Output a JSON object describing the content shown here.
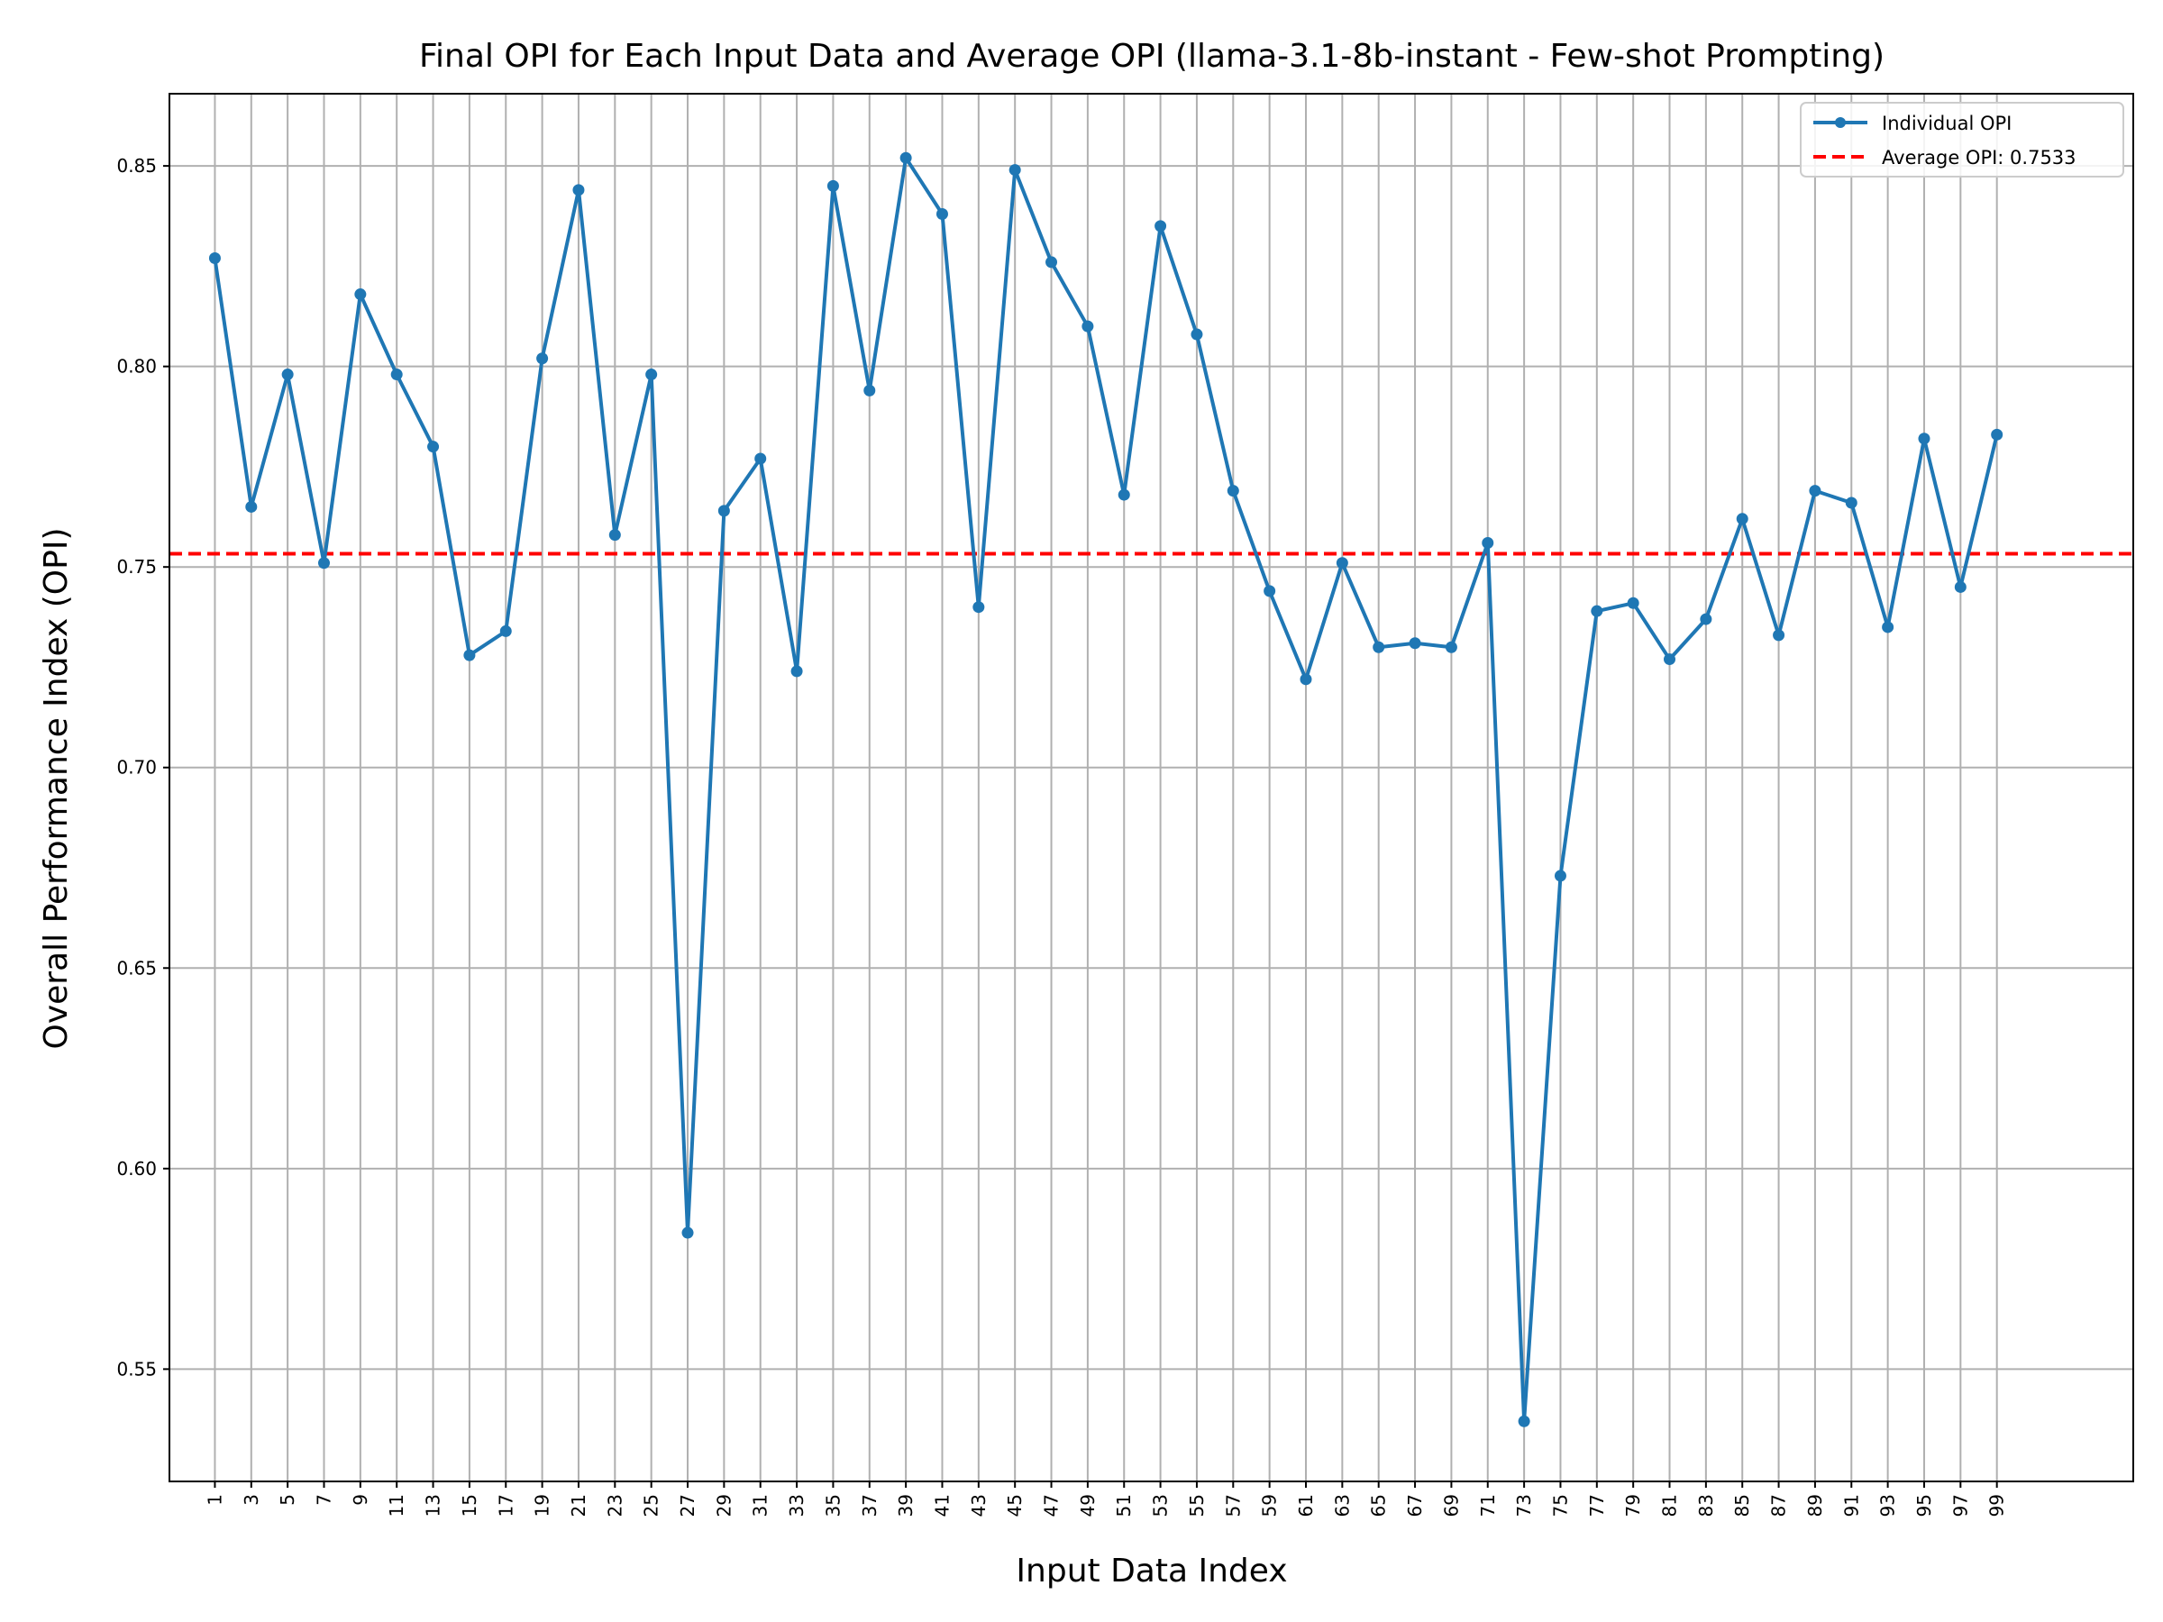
{
  "chart_data": {
    "type": "line",
    "title": "Final OPI for Each Input Data and Average OPI (llama-3.1-8b-instant - Few-shot Prompting)",
    "xlabel": "Input Data Index",
    "ylabel": "Overall Performance Index (OPI)",
    "ylim": [
      0.522,
      0.868
    ],
    "xlim": [
      -1.5,
      106.5
    ],
    "y_ticks": [
      0.55,
      0.6,
      0.65,
      0.7,
      0.75,
      0.8,
      0.85
    ],
    "y_tick_labels": [
      "0.55",
      "0.60",
      "0.65",
      "0.70",
      "0.75",
      "0.80",
      "0.85"
    ],
    "x_ticks": [
      1,
      3,
      5,
      7,
      9,
      11,
      13,
      15,
      17,
      19,
      21,
      23,
      25,
      27,
      29,
      31,
      33,
      35,
      37,
      39,
      41,
      43,
      45,
      47,
      49,
      51,
      53,
      55,
      57,
      59,
      61,
      63,
      65,
      67,
      69,
      71,
      73,
      75,
      77,
      79,
      81,
      83,
      85,
      87,
      89,
      91,
      93,
      95,
      97,
      99
    ],
    "x_tick_labels": [
      "1",
      "3",
      "5",
      "7",
      "9",
      "11",
      "13",
      "15",
      "17",
      "19",
      "21",
      "23",
      "25",
      "27",
      "29",
      "31",
      "33",
      "35",
      "37",
      "39",
      "41",
      "43",
      "45",
      "47",
      "49",
      "51",
      "53",
      "55",
      "57",
      "59",
      "61",
      "63",
      "65",
      "67",
      "69",
      "71",
      "73",
      "75",
      "77",
      "79",
      "81",
      "83",
      "85",
      "87",
      "89",
      "91",
      "93",
      "95",
      "97",
      "99"
    ],
    "grid": true,
    "legend_position": "top-right",
    "series": [
      {
        "name": "Individual OPI",
        "color": "#1f77b4",
        "marker": "circle",
        "x": [
          1,
          3,
          5,
          7,
          9,
          11,
          13,
          15,
          17,
          19,
          21,
          23,
          25,
          27,
          29,
          31,
          33,
          35,
          37,
          39,
          41,
          43,
          45,
          47,
          49,
          51,
          53,
          55,
          57,
          59,
          61,
          63,
          65,
          67,
          69,
          71,
          73,
          75,
          77,
          79,
          81,
          83,
          85,
          87,
          89,
          91,
          93,
          95,
          97,
          99
        ],
        "y": [
          0.827,
          0.765,
          0.798,
          0.751,
          0.818,
          0.798,
          0.78,
          0.728,
          0.734,
          0.802,
          0.844,
          0.758,
          0.798,
          0.584,
          0.764,
          0.777,
          0.724,
          0.845,
          0.794,
          0.852,
          0.838,
          0.74,
          0.849,
          0.826,
          0.81,
          0.768,
          0.835,
          0.808,
          0.769,
          0.744,
          0.722,
          0.751,
          0.73,
          0.731,
          0.73,
          0.756,
          0.537,
          0.673,
          0.739,
          0.741,
          0.727,
          0.737,
          0.762,
          0.733,
          0.769,
          0.766,
          0.735,
          0.782,
          0.745,
          0.783
        ]
      }
    ],
    "reference_lines": [
      {
        "name": "Average OPI: 0.7533",
        "value": 0.7533,
        "orientation": "horizontal",
        "color": "#ff0000",
        "style": "dashed"
      }
    ]
  }
}
